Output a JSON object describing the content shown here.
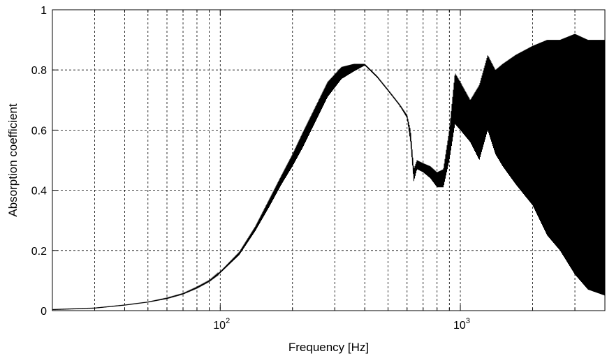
{
  "chart_data": {
    "type": "line",
    "xlabel": "Frequency [Hz]",
    "ylabel": "Absorption  coefficient",
    "x_scale": "log",
    "xlim": [
      20,
      4000
    ],
    "ylim": [
      0,
      1
    ],
    "grid": true,
    "x_tick_labels": [
      {
        "base": "10",
        "exp": "2",
        "value": 100
      },
      {
        "base": "10",
        "exp": "3",
        "value": 1000
      }
    ],
    "y_tick_labels": [
      "0",
      "0.2",
      "0.4",
      "0.6",
      "0.8",
      "1"
    ],
    "series": [
      {
        "color": "#000000",
        "envelope": [
          {
            "x": 20,
            "lo": 0.003,
            "hi": 0.004
          },
          {
            "x": 30,
            "lo": 0.008,
            "hi": 0.009
          },
          {
            "x": 40,
            "lo": 0.018,
            "hi": 0.019
          },
          {
            "x": 50,
            "lo": 0.028,
            "hi": 0.029
          },
          {
            "x": 60,
            "lo": 0.04,
            "hi": 0.042
          },
          {
            "x": 70,
            "lo": 0.055,
            "hi": 0.057
          },
          {
            "x": 80,
            "lo": 0.075,
            "hi": 0.078
          },
          {
            "x": 90,
            "lo": 0.097,
            "hi": 0.1
          },
          {
            "x": 100,
            "lo": 0.125,
            "hi": 0.13
          },
          {
            "x": 120,
            "lo": 0.185,
            "hi": 0.195
          },
          {
            "x": 140,
            "lo": 0.265,
            "hi": 0.28
          },
          {
            "x": 160,
            "lo": 0.345,
            "hi": 0.37
          },
          {
            "x": 180,
            "lo": 0.42,
            "hi": 0.45
          },
          {
            "x": 200,
            "lo": 0.48,
            "hi": 0.52
          },
          {
            "x": 220,
            "lo": 0.54,
            "hi": 0.59
          },
          {
            "x": 250,
            "lo": 0.63,
            "hi": 0.68
          },
          {
            "x": 280,
            "lo": 0.71,
            "hi": 0.76
          },
          {
            "x": 320,
            "lo": 0.77,
            "hi": 0.81
          },
          {
            "x": 360,
            "lo": 0.795,
            "hi": 0.82
          },
          {
            "x": 400,
            "lo": 0.815,
            "hi": 0.82
          },
          {
            "x": 450,
            "lo": 0.775,
            "hi": 0.78
          },
          {
            "x": 500,
            "lo": 0.73,
            "hi": 0.735
          },
          {
            "x": 560,
            "lo": 0.68,
            "hi": 0.685
          },
          {
            "x": 600,
            "lo": 0.64,
            "hi": 0.65
          },
          {
            "x": 620,
            "lo": 0.56,
            "hi": 0.6
          },
          {
            "x": 640,
            "lo": 0.43,
            "hi": 0.47
          },
          {
            "x": 660,
            "lo": 0.47,
            "hi": 0.5
          },
          {
            "x": 700,
            "lo": 0.46,
            "hi": 0.49
          },
          {
            "x": 750,
            "lo": 0.44,
            "hi": 0.48
          },
          {
            "x": 800,
            "lo": 0.41,
            "hi": 0.46
          },
          {
            "x": 850,
            "lo": 0.41,
            "hi": 0.47
          },
          {
            "x": 900,
            "lo": 0.5,
            "hi": 0.6
          },
          {
            "x": 950,
            "lo": 0.62,
            "hi": 0.79
          },
          {
            "x": 1000,
            "lo": 0.6,
            "hi": 0.76
          },
          {
            "x": 1100,
            "lo": 0.56,
            "hi": 0.7
          },
          {
            "x": 1200,
            "lo": 0.5,
            "hi": 0.75
          },
          {
            "x": 1300,
            "lo": 0.6,
            "hi": 0.85
          },
          {
            "x": 1400,
            "lo": 0.52,
            "hi": 0.8
          },
          {
            "x": 1500,
            "lo": 0.48,
            "hi": 0.82
          },
          {
            "x": 1700,
            "lo": 0.42,
            "hi": 0.85
          },
          {
            "x": 2000,
            "lo": 0.35,
            "hi": 0.88
          },
          {
            "x": 2300,
            "lo": 0.25,
            "hi": 0.9
          },
          {
            "x": 2600,
            "lo": 0.2,
            "hi": 0.9
          },
          {
            "x": 3000,
            "lo": 0.12,
            "hi": 0.92
          },
          {
            "x": 3400,
            "lo": 0.07,
            "hi": 0.9
          },
          {
            "x": 4000,
            "lo": 0.05,
            "hi": 0.9
          }
        ]
      }
    ]
  }
}
